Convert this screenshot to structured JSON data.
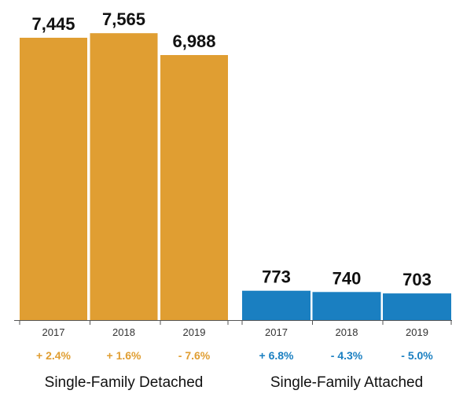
{
  "chart_data": {
    "type": "bar",
    "ylim": [
      0,
      8000
    ],
    "groups": [
      {
        "name": "Single-Family Detached",
        "color": "#e09e32",
        "categories": [
          "2017",
          "2018",
          "2019"
        ],
        "values": [
          7445,
          7565,
          6988
        ],
        "value_labels": [
          "7,445",
          "7,565",
          "6,988"
        ],
        "changes": [
          "+ 2.4%",
          "+ 1.6%",
          "- 7.6%"
        ]
      },
      {
        "name": "Single-Family Attached",
        "color": "#1a7fc1",
        "categories": [
          "2017",
          "2018",
          "2019"
        ],
        "values": [
          773,
          740,
          703
        ],
        "value_labels": [
          "773",
          "740",
          "703"
        ],
        "changes": [
          "+ 6.8%",
          "- 4.3%",
          "- 5.0%"
        ]
      }
    ]
  }
}
